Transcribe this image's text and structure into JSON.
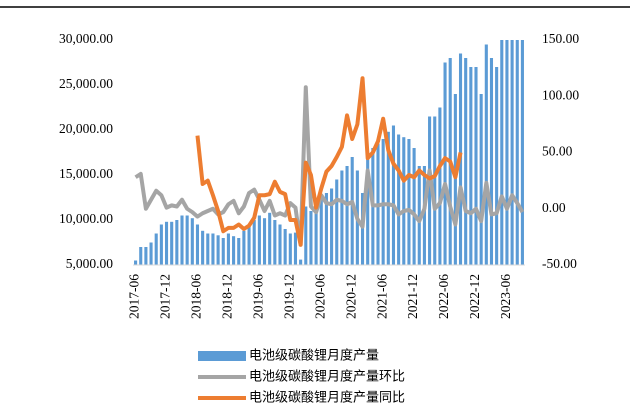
{
  "chart_data": {
    "type": "bar-line",
    "categories": [
      "2017-06",
      null,
      null,
      null,
      null,
      null,
      "2017-12",
      null,
      null,
      null,
      null,
      null,
      "2018-06",
      null,
      null,
      null,
      null,
      null,
      "2018-12",
      null,
      null,
      null,
      null,
      null,
      "2019-06",
      null,
      null,
      null,
      null,
      null,
      "2019-12",
      null,
      null,
      null,
      null,
      null,
      "2020-06",
      null,
      null,
      null,
      null,
      null,
      "2020-12",
      null,
      null,
      null,
      null,
      null,
      "2021-06",
      null,
      null,
      null,
      null,
      null,
      "2021-12",
      null,
      null,
      null,
      null,
      null,
      "2022-06",
      null,
      null,
      null,
      null,
      null,
      "2022-12",
      null,
      null,
      null,
      null,
      null,
      "2023-06",
      null,
      null,
      null
    ],
    "series": [
      {
        "name": "电池级碳酸锂月度产量",
        "kind": "bar",
        "color": "#5b9bd5",
        "values": [
          5500,
          7000,
          7000,
          7500,
          8500,
          9500,
          9800,
          9800,
          10000,
          10500,
          10500,
          10200,
          9500,
          8800,
          8500,
          8500,
          8300,
          8000,
          8500,
          8200,
          8000,
          8800,
          9500,
          10000,
          10500,
          10200,
          10800,
          10000,
          9500,
          9000,
          8500,
          8600,
          5600,
          11500,
          11000,
          11000,
          12500,
          13000,
          13500,
          14500,
          15500,
          16000,
          17000,
          15500,
          13000,
          17500,
          18000,
          18500,
          19000,
          19800,
          20500,
          19500,
          19200,
          19000,
          18000,
          16000,
          16000,
          21500,
          21500,
          22500,
          27500,
          28000,
          24000,
          28500,
          28000,
          27000,
          27000,
          24000,
          29500,
          28000,
          27000,
          30000,
          30000,
          30000,
          30000,
          30000
        ]
      },
      {
        "name": "电池级碳酸锂月度产量环比",
        "kind": "line",
        "axis": "y2",
        "color": "#a5a5a5",
        "values": [
          28,
          31,
          0,
          8,
          16,
          12,
          1,
          3,
          2,
          8,
          0,
          -3,
          -7,
          -4,
          -2,
          0,
          -5,
          -3,
          4,
          7,
          -4,
          2,
          14,
          17,
          8,
          -2,
          7,
          -6,
          -4,
          -6,
          5,
          1,
          -32,
          108,
          2,
          -3,
          12,
          5,
          4,
          8,
          7,
          4,
          6,
          -9,
          -16,
          34,
          3,
          3,
          4,
          4,
          3,
          -5,
          -2,
          -1,
          -5,
          -11,
          0,
          34,
          0,
          5,
          22,
          2,
          -14,
          19,
          -2,
          -4,
          0,
          -11,
          23,
          -5,
          -4,
          11,
          0,
          12,
          5,
          -3
        ]
      },
      {
        "name": "电池级碳酸锂月度产量同比",
        "kind": "line",
        "axis": "y2",
        "color": "#ed7d31",
        "values": [
          null,
          null,
          null,
          null,
          null,
          null,
          null,
          null,
          null,
          null,
          null,
          null,
          65,
          22,
          25,
          12,
          -2,
          -20,
          -17,
          -17,
          -14,
          -18,
          -15,
          -8,
          12,
          12,
          13,
          24,
          15,
          13,
          -10,
          -10,
          -32,
          41,
          30,
          1,
          18,
          33,
          38,
          46,
          55,
          83,
          62,
          75,
          116,
          45,
          50,
          60,
          80,
          52,
          40,
          34,
          25,
          30,
          28,
          34,
          30,
          27,
          29,
          38,
          45,
          42,
          28,
          50,
          null,
          null,
          null,
          null,
          null,
          null,
          null,
          null,
          null,
          null,
          null,
          null
        ]
      }
    ],
    "ylim": [
      5000,
      30000
    ],
    "yticks": [
      {
        "value": 5000,
        "label": "5,000.00"
      },
      {
        "value": 10000,
        "label": "10,000.00"
      },
      {
        "value": 15000,
        "label": "15,000.00"
      },
      {
        "value": 20000,
        "label": "20,000.00"
      },
      {
        "value": 25000,
        "label": "25,000.00"
      },
      {
        "value": 30000,
        "label": "30,000.00"
      }
    ],
    "y2lim": [
      -50,
      150
    ],
    "y2ticks": [
      {
        "value": -50,
        "label": "-50.00"
      },
      {
        "value": 0,
        "label": "0.00"
      },
      {
        "value": 50,
        "label": "50.00"
      },
      {
        "value": 100,
        "label": "100.00"
      },
      {
        "value": 150,
        "label": "150.00"
      }
    ]
  }
}
